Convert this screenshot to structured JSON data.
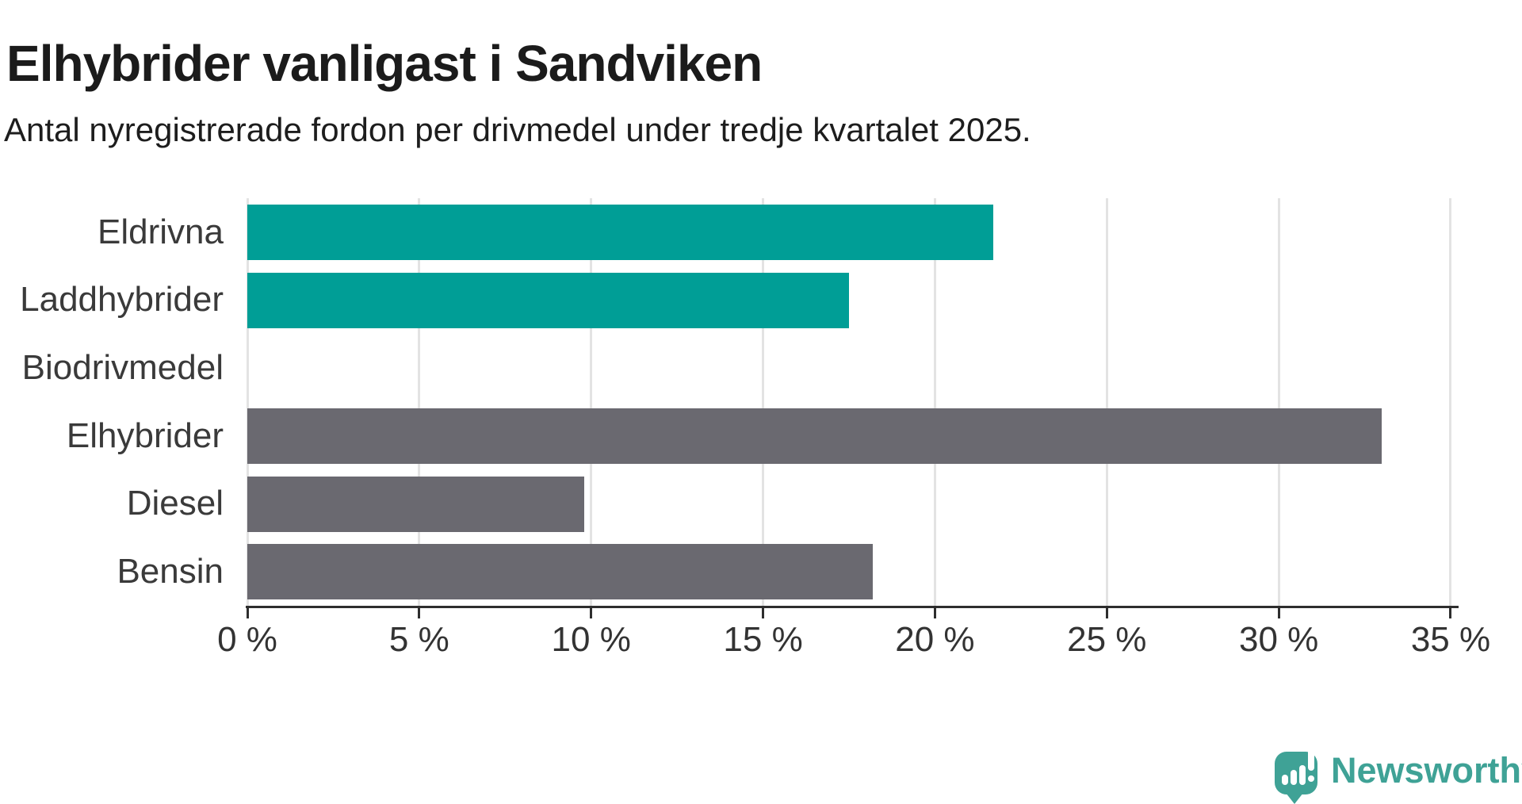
{
  "header": {
    "title": "Elhybrider vanligast i Sandviken",
    "subtitle": "Antal nyregistrerade fordon per drivmedel under tredje kvartalet 2025."
  },
  "chart_data": {
    "type": "bar",
    "orientation": "horizontal",
    "title": "Elhybrider vanligast i Sandviken",
    "subtitle": "Antal nyregistrerade fordon per drivmedel under tredje kvartalet 2025.",
    "categories": [
      "Eldrivna",
      "Laddhybrider",
      "Biodrivmedel",
      "Elhybrider",
      "Diesel",
      "Bensin"
    ],
    "values": [
      21.7,
      17.5,
      0,
      33.0,
      9.8,
      18.2
    ],
    "unit": "%",
    "xlabel": "",
    "ylabel": "",
    "xlim": [
      0,
      35
    ],
    "x_ticks": [
      0,
      5,
      10,
      15,
      20,
      25,
      30,
      35
    ],
    "x_tick_labels": [
      "0 %",
      "5 %",
      "10 %",
      "15 %",
      "20 %",
      "25 %",
      "30 %",
      "35 %"
    ],
    "bar_colors": [
      "#009e96",
      "#009e96",
      "#009e96",
      "#6a6970",
      "#6a6970",
      "#6a6970"
    ],
    "highlight_color": "#009e96",
    "default_color": "#6a6970",
    "grid": true,
    "gridline_color": "#e3e3e3",
    "axis_color": "#2e2e2e",
    "legend_position": "none"
  },
  "footer": {
    "brand": "Newsworthy",
    "brand_color": "#3fa296",
    "brand_icon": "newsworthy-speech-bubble-chart-icon"
  }
}
